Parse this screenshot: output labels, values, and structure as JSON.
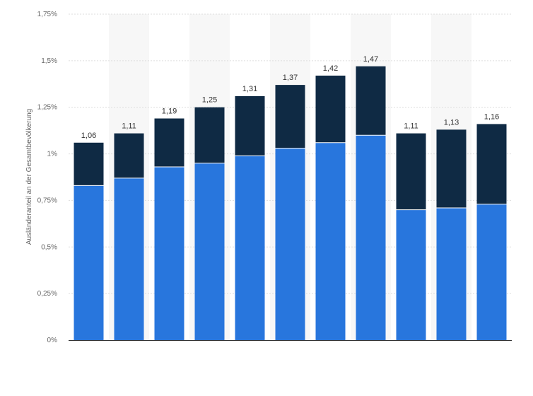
{
  "chart_data": {
    "type": "bar",
    "stacked": true,
    "ylabel": "Ausländeranteil an der Gesamtbevölkerung",
    "y_ticks": [
      "0%",
      "0,25%",
      "0,5%",
      "0,75%",
      "1%",
      "1,25%",
      "1,5%",
      "1,75%"
    ],
    "ylim": [
      0,
      1.75
    ],
    "grid": true,
    "colors": {
      "bottom": "#2876dd",
      "top": "#0f2a44",
      "alt_band": "#f7f7f7",
      "grid": "#dddddd",
      "axis": "#333333"
    },
    "totals": [
      1.06,
      1.11,
      1.19,
      1.25,
      1.31,
      1.37,
      1.42,
      1.47,
      1.11,
      1.13,
      1.16
    ],
    "total_labels": [
      "1,06",
      "1,11",
      "1,19",
      "1,25",
      "1,31",
      "1,37",
      "1,42",
      "1,47",
      "1,11",
      "1,13",
      "1,16"
    ],
    "series": [
      {
        "values": [
          0.83,
          0.87,
          0.93,
          0.95,
          0.99,
          1.03,
          1.06,
          1.1,
          0.7,
          0.71,
          0.73
        ]
      },
      {
        "values": [
          0.23,
          0.24,
          0.26,
          0.3,
          0.32,
          0.34,
          0.36,
          0.37,
          0.41,
          0.42,
          0.43
        ]
      }
    ]
  }
}
